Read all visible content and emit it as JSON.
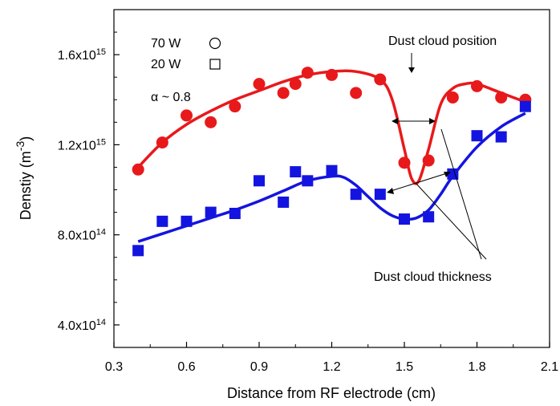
{
  "chart_data": {
    "type": "scatter",
    "xlabel": "Distance from RF electrode (cm)",
    "ylabel_main": "Denstiy (m",
    "ylabel_sup": "-3",
    "ylabel_close": ")",
    "xlim": [
      0.3,
      2.1
    ],
    "ylim": [
      300000000000000.0,
      1800000000000000.0
    ],
    "x_ticks": [
      0.3,
      0.6,
      0.9,
      1.2,
      1.5,
      1.8,
      2.1
    ],
    "x_tick_labels": [
      "0.3",
      "0.6",
      "0.9",
      "1.2",
      "1.5",
      "1.8",
      "2.1"
    ],
    "y_ticks": [
      {
        "value": 400000000000000.0,
        "mantissa": "4.0x10",
        "exp": "14"
      },
      {
        "value": 800000000000000.0,
        "mantissa": "8.0x10",
        "exp": "14"
      },
      {
        "value": 1200000000000000.0,
        "mantissa": "1.2x10",
        "exp": "15"
      },
      {
        "value": 1600000000000000.0,
        "mantissa": "1.6x10",
        "exp": "15"
      }
    ],
    "series": [
      {
        "name": "70 W",
        "color": "#e8191b",
        "marker": "circle",
        "points": [
          [
            0.4,
            1090000000000000.0
          ],
          [
            0.5,
            1210000000000000.0
          ],
          [
            0.6,
            1330000000000000.0
          ],
          [
            0.7,
            1300000000000000.0
          ],
          [
            0.8,
            1370000000000000.0
          ],
          [
            0.9,
            1470000000000000.0
          ],
          [
            1.0,
            1430000000000000.0
          ],
          [
            1.05,
            1470000000000000.0
          ],
          [
            1.1,
            1520000000000000.0
          ],
          [
            1.2,
            1510000000000000.0
          ],
          [
            1.3,
            1430000000000000.0
          ],
          [
            1.4,
            1490000000000000.0
          ],
          [
            1.5,
            1120000000000000.0
          ],
          [
            1.6,
            1130000000000000.0
          ],
          [
            1.7,
            1410000000000000.0
          ],
          [
            1.8,
            1460000000000000.0
          ],
          [
            1.9,
            1410000000000000.0
          ],
          [
            2.0,
            1400000000000000.0
          ]
        ],
        "fit": [
          [
            0.4,
            1100000000000000.0
          ],
          [
            0.5,
            1210000000000000.0
          ],
          [
            0.6,
            1290000000000000.0
          ],
          [
            0.7,
            1350000000000000.0
          ],
          [
            0.8,
            1400000000000000.0
          ],
          [
            0.9,
            1440000000000000.0
          ],
          [
            1.0,
            1480000000000000.0
          ],
          [
            1.1,
            1510000000000000.0
          ],
          [
            1.2,
            1525000000000000.0
          ],
          [
            1.3,
            1525000000000000.0
          ],
          [
            1.4,
            1490000000000000.0
          ],
          [
            1.45,
            1400000000000000.0
          ],
          [
            1.5,
            1180000000000000.0
          ],
          [
            1.53,
            1050000000000000.0
          ],
          [
            1.56,
            1040000000000000.0
          ],
          [
            1.6,
            1180000000000000.0
          ],
          [
            1.65,
            1380000000000000.0
          ],
          [
            1.7,
            1450000000000000.0
          ],
          [
            1.75,
            1470000000000000.0
          ],
          [
            1.8,
            1470000000000000.0
          ],
          [
            1.9,
            1430000000000000.0
          ],
          [
            2.0,
            1390000000000000.0
          ]
        ]
      },
      {
        "name": "20 W",
        "color": "#1414e0",
        "marker": "square",
        "points": [
          [
            0.4,
            730000000000000.0
          ],
          [
            0.5,
            860000000000000.0
          ],
          [
            0.6,
            860000000000000.0
          ],
          [
            0.7,
            900000000000000.0
          ],
          [
            0.8,
            895000000000000.0
          ],
          [
            0.9,
            1040000000000000.0
          ],
          [
            1.0,
            945000000000000.0
          ],
          [
            1.05,
            1080000000000000.0
          ],
          [
            1.1,
            1040000000000000.0
          ],
          [
            1.2,
            1085000000000000.0
          ],
          [
            1.3,
            980000000000000.0
          ],
          [
            1.4,
            980000000000000.0
          ],
          [
            1.5,
            870000000000000.0
          ],
          [
            1.6,
            880000000000000.0
          ],
          [
            1.7,
            1070000000000000.0
          ],
          [
            1.8,
            1240000000000000.0
          ],
          [
            1.9,
            1235000000000000.0
          ],
          [
            2.0,
            1370000000000000.0
          ]
        ],
        "fit": [
          [
            0.4,
            770000000000000.0
          ],
          [
            0.5,
            805000000000000.0
          ],
          [
            0.6,
            840000000000000.0
          ],
          [
            0.7,
            875000000000000.0
          ],
          [
            0.8,
            910000000000000.0
          ],
          [
            0.9,
            950000000000000.0
          ],
          [
            1.0,
            995000000000000.0
          ],
          [
            1.1,
            1040000000000000.0
          ],
          [
            1.2,
            1060000000000000.0
          ],
          [
            1.25,
            1055000000000000.0
          ],
          [
            1.3,
            1020000000000000.0
          ],
          [
            1.35,
            970000000000000.0
          ],
          [
            1.4,
            920000000000000.0
          ],
          [
            1.45,
            885000000000000.0
          ],
          [
            1.5,
            870000000000000.0
          ],
          [
            1.55,
            875000000000000.0
          ],
          [
            1.6,
            910000000000000.0
          ],
          [
            1.65,
            980000000000000.0
          ],
          [
            1.7,
            1060000000000000.0
          ],
          [
            1.8,
            1190000000000000.0
          ],
          [
            1.9,
            1280000000000000.0
          ],
          [
            2.0,
            1340000000000000.0
          ]
        ]
      }
    ],
    "legend": [
      {
        "label": "70 W",
        "marker": "circle"
      },
      {
        "label": "20 W",
        "marker": "square"
      }
    ],
    "annotations": {
      "alpha": "α  ~ 0.8",
      "dust_position": "Dust cloud position",
      "dust_thickness": "Dust cloud thickness"
    }
  }
}
